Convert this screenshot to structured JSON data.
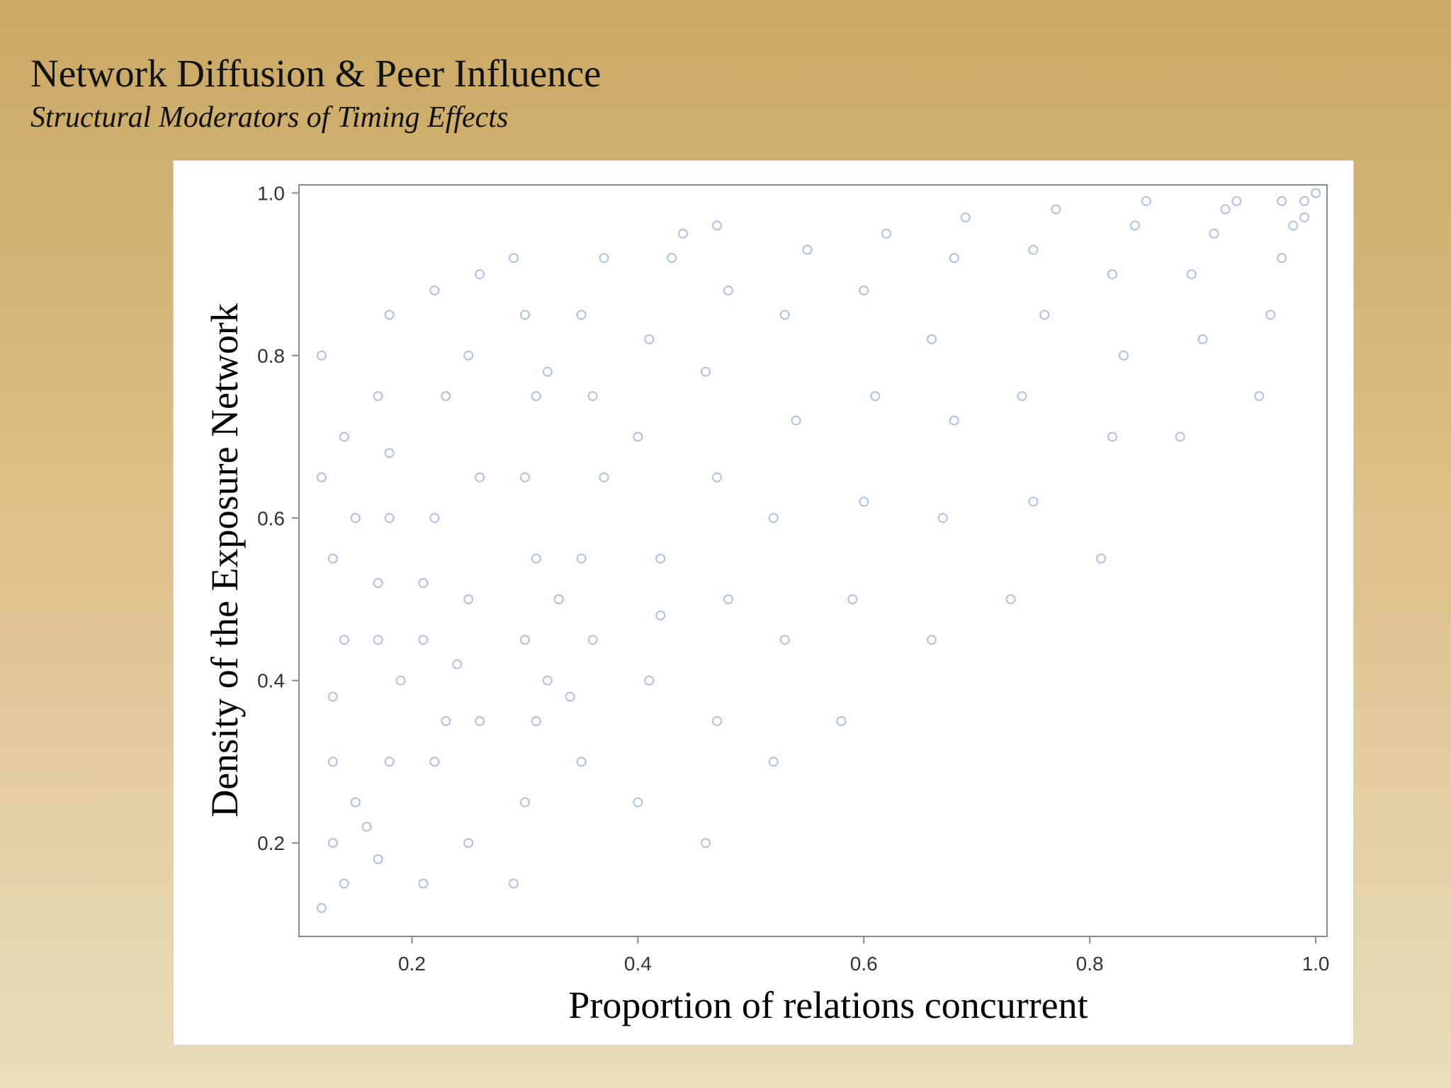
{
  "slide": {
    "title": "Network Diffusion & Peer Influence",
    "subtitle": "Structural Moderators of Timing Effects"
  },
  "chart_data": {
    "type": "scatter",
    "xlabel": "Proportion of relations concurrent",
    "ylabel": "Density of the Exposure Network",
    "xlim": [
      0.1,
      1.01
    ],
    "ylim": [
      0.085,
      1.01
    ],
    "xticks": [
      0.2,
      0.4,
      0.6,
      0.8,
      1.0
    ],
    "xtick_labels": [
      "0.2",
      "0.4",
      "0.6",
      "0.8",
      "1.0"
    ],
    "yticks": [
      0.2,
      0.4,
      0.6,
      0.8,
      1.0
    ],
    "ytick_labels": [
      "0.2",
      "0.4",
      "0.6",
      "0.8",
      "1.0"
    ],
    "grid": false,
    "legend": "none",
    "marker": "open-circle",
    "point_color": "#1f47a8",
    "point_opacity": 0.35,
    "series": [
      {
        "points": [
          [
            0.12,
            0.12
          ],
          [
            0.13,
            0.2
          ],
          [
            0.13,
            0.3
          ],
          [
            0.14,
            0.45
          ],
          [
            0.13,
            0.55
          ],
          [
            0.14,
            0.7
          ],
          [
            0.12,
            0.8
          ],
          [
            0.15,
            0.25
          ],
          [
            0.14,
            0.15
          ],
          [
            0.13,
            0.38
          ],
          [
            0.15,
            0.6
          ],
          [
            0.12,
            0.65
          ],
          [
            0.17,
            0.18
          ],
          [
            0.18,
            0.3
          ],
          [
            0.17,
            0.45
          ],
          [
            0.18,
            0.6
          ],
          [
            0.17,
            0.75
          ],
          [
            0.18,
            0.85
          ],
          [
            0.16,
            0.22
          ],
          [
            0.19,
            0.4
          ],
          [
            0.17,
            0.52
          ],
          [
            0.18,
            0.68
          ],
          [
            0.21,
            0.15
          ],
          [
            0.22,
            0.3
          ],
          [
            0.21,
            0.45
          ],
          [
            0.22,
            0.6
          ],
          [
            0.23,
            0.75
          ],
          [
            0.22,
            0.88
          ],
          [
            0.23,
            0.35
          ],
          [
            0.21,
            0.52
          ],
          [
            0.25,
            0.2
          ],
          [
            0.26,
            0.35
          ],
          [
            0.25,
            0.5
          ],
          [
            0.26,
            0.65
          ],
          [
            0.25,
            0.8
          ],
          [
            0.26,
            0.9
          ],
          [
            0.24,
            0.42
          ],
          [
            0.29,
            0.15
          ],
          [
            0.3,
            0.25
          ],
          [
            0.31,
            0.35
          ],
          [
            0.3,
            0.45
          ],
          [
            0.31,
            0.55
          ],
          [
            0.3,
            0.65
          ],
          [
            0.31,
            0.75
          ],
          [
            0.32,
            0.78
          ],
          [
            0.3,
            0.85
          ],
          [
            0.29,
            0.92
          ],
          [
            0.33,
            0.5
          ],
          [
            0.32,
            0.4
          ],
          [
            0.35,
            0.3
          ],
          [
            0.36,
            0.45
          ],
          [
            0.35,
            0.55
          ],
          [
            0.37,
            0.65
          ],
          [
            0.36,
            0.75
          ],
          [
            0.35,
            0.85
          ],
          [
            0.37,
            0.92
          ],
          [
            0.34,
            0.38
          ],
          [
            0.4,
            0.25
          ],
          [
            0.41,
            0.4
          ],
          [
            0.42,
            0.55
          ],
          [
            0.4,
            0.7
          ],
          [
            0.41,
            0.82
          ],
          [
            0.43,
            0.92
          ],
          [
            0.44,
            0.95
          ],
          [
            0.42,
            0.48
          ],
          [
            0.46,
            0.2
          ],
          [
            0.47,
            0.35
          ],
          [
            0.48,
            0.5
          ],
          [
            0.47,
            0.65
          ],
          [
            0.46,
            0.78
          ],
          [
            0.48,
            0.88
          ],
          [
            0.47,
            0.96
          ],
          [
            0.52,
            0.3
          ],
          [
            0.53,
            0.45
          ],
          [
            0.52,
            0.6
          ],
          [
            0.54,
            0.72
          ],
          [
            0.53,
            0.85
          ],
          [
            0.55,
            0.93
          ],
          [
            0.58,
            0.35
          ],
          [
            0.59,
            0.5
          ],
          [
            0.6,
            0.62
          ],
          [
            0.61,
            0.75
          ],
          [
            0.6,
            0.88
          ],
          [
            0.62,
            0.95
          ],
          [
            0.66,
            0.45
          ],
          [
            0.67,
            0.6
          ],
          [
            0.68,
            0.72
          ],
          [
            0.66,
            0.82
          ],
          [
            0.68,
            0.92
          ],
          [
            0.69,
            0.97
          ],
          [
            0.73,
            0.5
          ],
          [
            0.75,
            0.62
          ],
          [
            0.74,
            0.75
          ],
          [
            0.76,
            0.85
          ],
          [
            0.75,
            0.93
          ],
          [
            0.77,
            0.98
          ],
          [
            0.81,
            0.55
          ],
          [
            0.82,
            0.7
          ],
          [
            0.83,
            0.8
          ],
          [
            0.82,
            0.9
          ],
          [
            0.84,
            0.96
          ],
          [
            0.85,
            0.99
          ],
          [
            0.88,
            0.7
          ],
          [
            0.9,
            0.82
          ],
          [
            0.89,
            0.9
          ],
          [
            0.91,
            0.95
          ],
          [
            0.92,
            0.98
          ],
          [
            0.93,
            0.99
          ],
          [
            0.95,
            0.75
          ],
          [
            0.96,
            0.85
          ],
          [
            0.97,
            0.92
          ],
          [
            0.98,
            0.96
          ],
          [
            0.99,
            0.99
          ],
          [
            1.0,
            1.0
          ],
          [
            0.97,
            0.99
          ],
          [
            0.99,
            0.97
          ]
        ]
      }
    ]
  }
}
